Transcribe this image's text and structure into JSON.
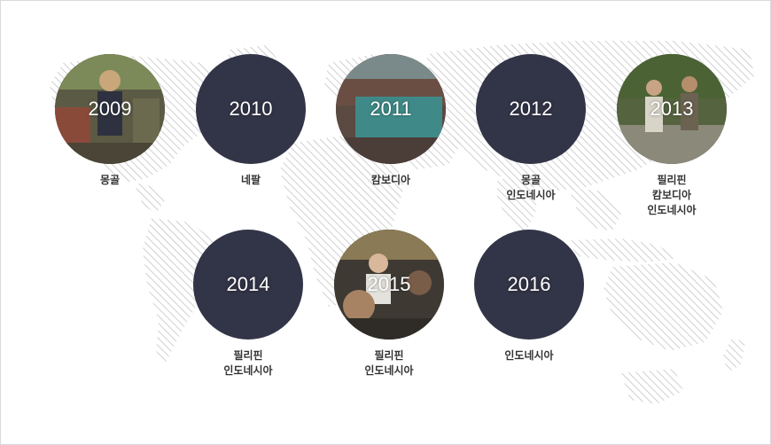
{
  "timeline": [
    {
      "year": "2009",
      "photo": true,
      "countries": [
        "몽골"
      ]
    },
    {
      "year": "2010",
      "photo": false,
      "countries": [
        "네팔"
      ]
    },
    {
      "year": "2011",
      "photo": true,
      "countries": [
        "캄보디아"
      ]
    },
    {
      "year": "2012",
      "photo": false,
      "countries": [
        "몽골",
        "인도네시아"
      ]
    },
    {
      "year": "2013",
      "photo": true,
      "countries": [
        "필리핀",
        "캄보디아",
        "인도네시아"
      ]
    },
    {
      "year": "2014",
      "photo": false,
      "countries": [
        "필리핀",
        "인도네시아"
      ]
    },
    {
      "year": "2015",
      "photo": true,
      "countries": [
        "필리핀",
        "인도네시아"
      ]
    },
    {
      "year": "2016",
      "photo": false,
      "countries": [
        "인도네시아"
      ]
    }
  ],
  "colors": {
    "circle": "#323447",
    "map_hatch": "#c4c4c4",
    "text": "#333333"
  }
}
